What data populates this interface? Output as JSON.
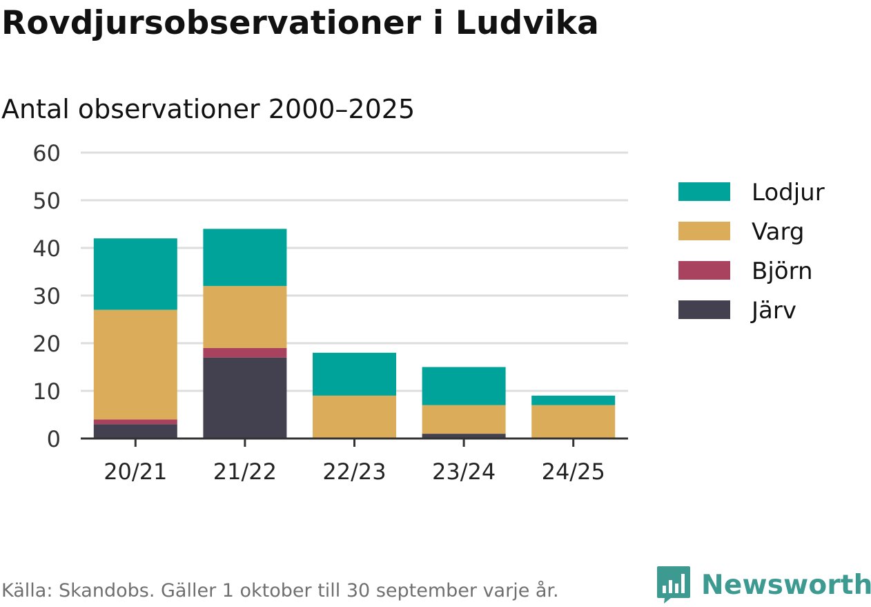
{
  "title": "Rovdjursobservationer i Ludvika",
  "subtitle": "Antal observationer 2000–2025",
  "source": "Källa: Skandobs. Gäller 1 oktober till 30 september varje år.",
  "brand": {
    "name": "Newsworthy",
    "icon": "bar-chart-logo-icon",
    "color": "#3d9a91"
  },
  "chart_data": {
    "type": "bar",
    "stacked": true,
    "title": "Rovdjursobservationer i Ludvika",
    "subtitle": "Antal observationer 2000–2025",
    "xlabel": "",
    "ylabel": "",
    "ylim": [
      0,
      60
    ],
    "yticks": [
      0,
      10,
      20,
      30,
      40,
      50,
      60
    ],
    "grid": true,
    "legend_position": "right",
    "categories": [
      "20/21",
      "21/22",
      "22/23",
      "23/24",
      "24/25"
    ],
    "series": [
      {
        "name": "Järv",
        "color": "#43404f",
        "values": [
          3,
          17,
          0,
          1,
          0
        ]
      },
      {
        "name": "Björn",
        "color": "#a8425f",
        "values": [
          1,
          2,
          0,
          0,
          0
        ]
      },
      {
        "name": "Varg",
        "color": "#dbad5b",
        "values": [
          23,
          13,
          9,
          6,
          7
        ]
      },
      {
        "name": "Lodjur",
        "color": "#00a39a",
        "values": [
          15,
          12,
          9,
          8,
          2
        ]
      }
    ],
    "legend_order": [
      "Lodjur",
      "Varg",
      "Björn",
      "Järv"
    ]
  }
}
